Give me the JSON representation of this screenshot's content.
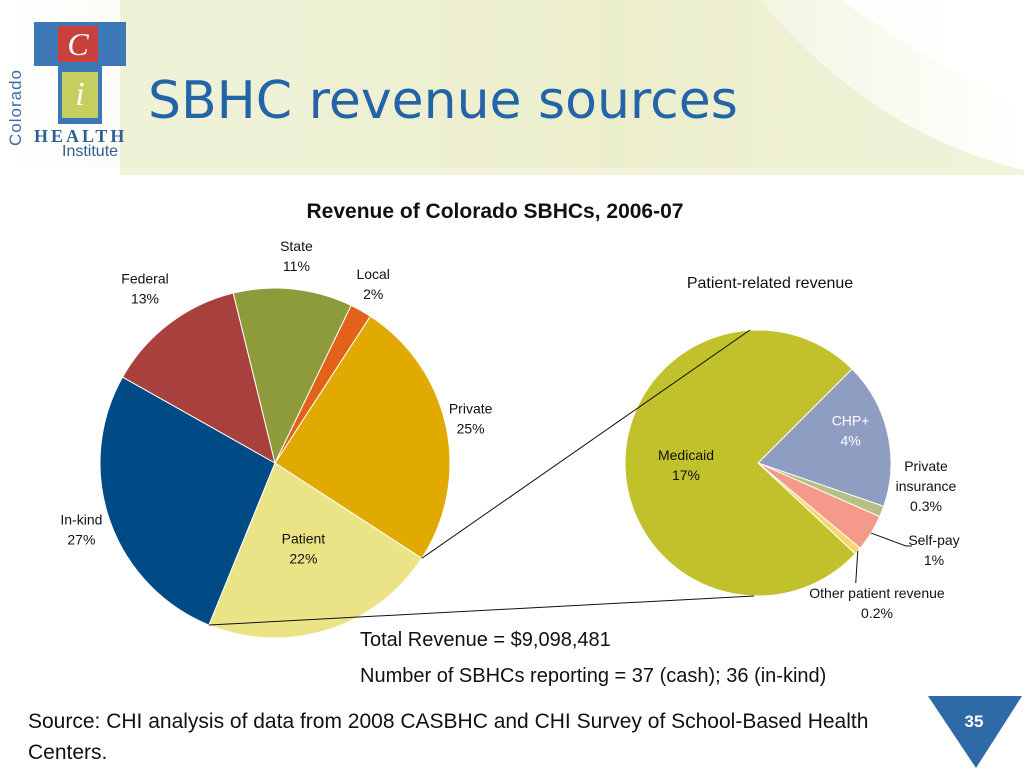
{
  "header": {
    "title": "SBHC revenue sources",
    "logo": {
      "letter_c": "C",
      "letter_i": "i",
      "word_colorado": "Colorado",
      "word_health": "HEALTH",
      "word_institute": "Institute"
    }
  },
  "colors": {
    "title_blue": "#2364a8",
    "logo_blue": "#3b78b5",
    "logo_red": "#c9413d",
    "logo_green": "#c5cf5f",
    "page_tab": "#2e6aa6"
  },
  "chart_data": {
    "type": "pie",
    "title": "Revenue of Colorado SBHCs, 2006-07",
    "main_pie": {
      "slices": [
        {
          "label": "Private",
          "value": 25,
          "value_label": "25%",
          "color": "#e0aa00"
        },
        {
          "label": "Patient",
          "value": 22,
          "value_label": "22%",
          "color": "#ebe487"
        },
        {
          "label": "In-kind",
          "value": 27,
          "value_label": "27%",
          "color": "#004a86"
        },
        {
          "label": "Federal",
          "value": 13,
          "value_label": "13%",
          "color": "#a8413e"
        },
        {
          "label": "State",
          "value": 11,
          "value_label": "11%",
          "color": "#8e9b3a"
        },
        {
          "label": "Local",
          "value": 2,
          "value_label": "2%",
          "color": "#e2621a"
        }
      ]
    },
    "breakout_pie": {
      "title": "Patient-related revenue",
      "slices": [
        {
          "label": "CHP+",
          "value": 4,
          "value_label": "4%",
          "color": "#8f9dc2"
        },
        {
          "label": "Private insurance",
          "label_lines": [
            "Private",
            "insurance"
          ],
          "value": 0.3,
          "value_label": "0.3%",
          "color": "#b6c082"
        },
        {
          "label": "Self-pay",
          "value": 1,
          "value_label": "1%",
          "color": "#f5998a"
        },
        {
          "label": "Other patient revenue",
          "value": 0.2,
          "value_label": "0.2%",
          "color": "#f4d86e"
        },
        {
          "label": "Medicaid",
          "value": 17,
          "value_label": "17%",
          "color": "#c1c12b"
        }
      ]
    }
  },
  "summary": {
    "total_revenue": "Total Revenue = $9,098,481",
    "sbhc_count": "Number of SBHCs reporting = 37 (cash); 36 (in-kind)"
  },
  "footer": {
    "source": "Source: CHI analysis of data from 2008 CASBHC and CHI Survey of School-Based Health Centers.",
    "page_number": "35"
  }
}
